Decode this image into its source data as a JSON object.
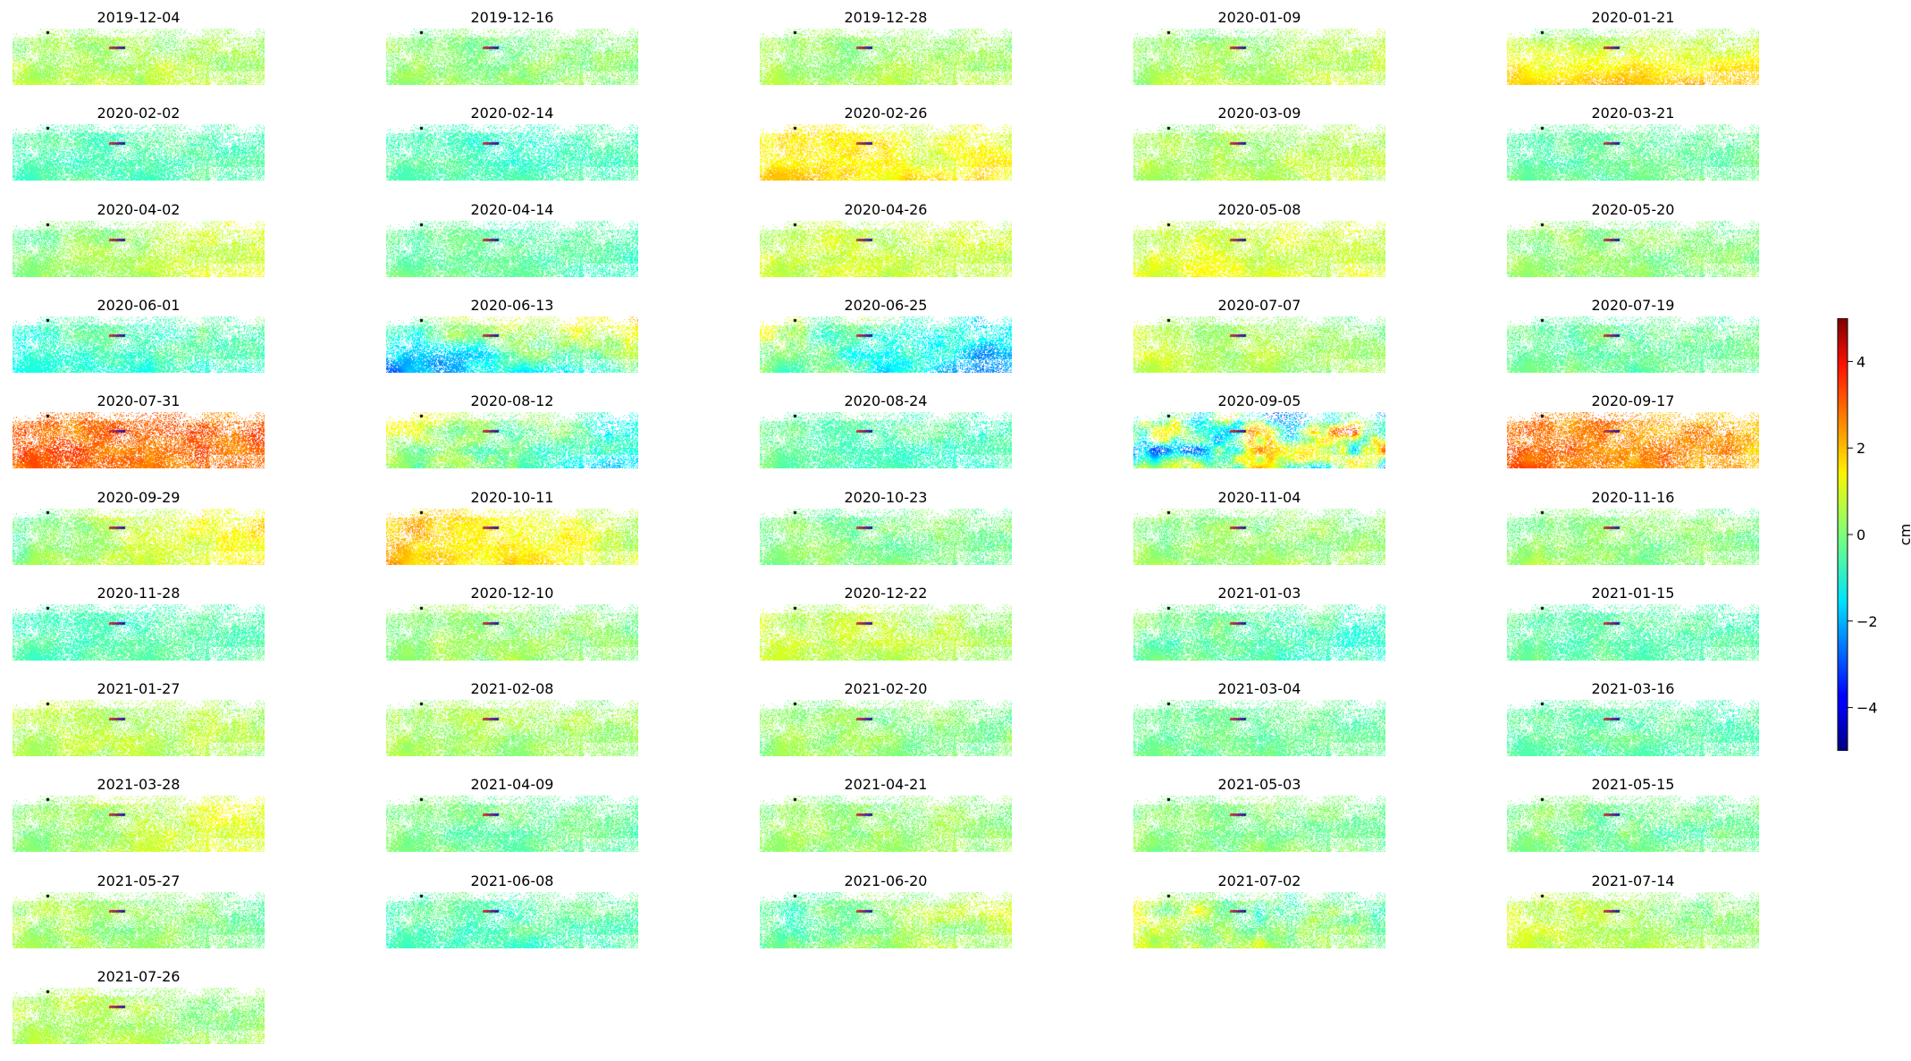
{
  "chart_data": {
    "type": "heatmap",
    "colormap": "jet",
    "layout": {
      "columns": 5,
      "panel_count": 51,
      "axes_visible": false
    },
    "panels": [
      {
        "date": "2019-12-04",
        "base": 0.4,
        "grad": 0.0,
        "vgrad": 0.4,
        "noise": 0.5
      },
      {
        "date": "2019-12-16",
        "base": 0.1,
        "grad": 0.0,
        "vgrad": 0.3,
        "noise": 0.5
      },
      {
        "date": "2019-12-28",
        "base": 0.3,
        "grad": 0.0,
        "vgrad": 0.2,
        "noise": 0.5
      },
      {
        "date": "2020-01-09",
        "base": 0.4,
        "grad": 0.5,
        "vgrad": 0.3,
        "noise": 0.5
      },
      {
        "date": "2020-01-21",
        "base": 1.0,
        "grad": 0.0,
        "vgrad": 1.6,
        "noise": 0.5
      },
      {
        "date": "2020-02-02",
        "base": -0.5,
        "grad": 0.0,
        "vgrad": 0.1,
        "noise": 0.4
      },
      {
        "date": "2020-02-14",
        "base": -0.6,
        "grad": 0.0,
        "vgrad": 0.2,
        "noise": 0.4
      },
      {
        "date": "2020-02-26",
        "base": 1.2,
        "grad": -0.3,
        "vgrad": 0.4,
        "noise": 0.6
      },
      {
        "date": "2020-03-09",
        "base": 0.4,
        "grad": 0.2,
        "vgrad": 0.2,
        "noise": 0.5
      },
      {
        "date": "2020-03-21",
        "base": -0.3,
        "grad": 0.0,
        "vgrad": 0.1,
        "noise": 0.4
      },
      {
        "date": "2020-04-02",
        "base": 0.5,
        "grad": 1.2,
        "vgrad": 0.1,
        "noise": 0.5
      },
      {
        "date": "2020-04-14",
        "base": -0.4,
        "grad": -0.5,
        "vgrad": 0.0,
        "noise": 0.4
      },
      {
        "date": "2020-04-26",
        "base": 0.7,
        "grad": 0.0,
        "vgrad": 0.3,
        "noise": 0.5
      },
      {
        "date": "2020-05-08",
        "base": 0.8,
        "grad": 0.0,
        "vgrad": 0.3,
        "noise": 0.5
      },
      {
        "date": "2020-05-20",
        "base": 0.1,
        "grad": -0.2,
        "vgrad": 0.1,
        "noise": 0.5
      },
      {
        "date": "2020-06-01",
        "base": -0.6,
        "grad": 0.5,
        "vgrad": -0.6,
        "noise": 0.6
      },
      {
        "date": "2020-06-13",
        "base": -0.3,
        "grad": 2.4,
        "vgrad": -2.2,
        "noise": 1.0
      },
      {
        "date": "2020-06-25",
        "base": -0.7,
        "grad": -2.4,
        "vgrad": -0.8,
        "noise": 1.0
      },
      {
        "date": "2020-07-07",
        "base": 0.4,
        "grad": -0.6,
        "vgrad": 0.2,
        "noise": 0.5
      },
      {
        "date": "2020-07-19",
        "base": -0.2,
        "grad": 0.0,
        "vgrad": 0.1,
        "noise": 0.5
      },
      {
        "date": "2020-07-31",
        "base": 2.7,
        "grad": 0.0,
        "vgrad": 0.2,
        "noise": 0.7
      },
      {
        "date": "2020-08-12",
        "base": -0.2,
        "grad": -2.0,
        "vgrad": -0.8,
        "noise": 1.0
      },
      {
        "date": "2020-08-24",
        "base": -0.4,
        "grad": -0.4,
        "vgrad": -0.1,
        "noise": 0.5
      },
      {
        "date": "2020-09-05",
        "base": 0.2,
        "grad": 0.0,
        "vgrad": 0.0,
        "noise": 3.6
      },
      {
        "date": "2020-09-17",
        "base": 2.3,
        "grad": -0.6,
        "vgrad": 0.3,
        "noise": 0.7
      },
      {
        "date": "2020-09-29",
        "base": 0.6,
        "grad": 1.6,
        "vgrad": 0.1,
        "noise": 0.6
      },
      {
        "date": "2020-10-11",
        "base": 1.3,
        "grad": -1.2,
        "vgrad": 0.2,
        "noise": 0.6
      },
      {
        "date": "2020-10-23",
        "base": 0.0,
        "grad": 0.0,
        "vgrad": 0.1,
        "noise": 0.5
      },
      {
        "date": "2020-11-04",
        "base": 0.2,
        "grad": 0.0,
        "vgrad": 0.1,
        "noise": 0.5
      },
      {
        "date": "2020-11-16",
        "base": 0.1,
        "grad": -0.3,
        "vgrad": 0.1,
        "noise": 0.5
      },
      {
        "date": "2020-11-28",
        "base": -0.5,
        "grad": 0.0,
        "vgrad": 0.1,
        "noise": 0.4
      },
      {
        "date": "2020-12-10",
        "base": 0.2,
        "grad": -0.2,
        "vgrad": 0.1,
        "noise": 0.5
      },
      {
        "date": "2020-12-22",
        "base": 0.5,
        "grad": -0.4,
        "vgrad": 0.1,
        "noise": 0.5
      },
      {
        "date": "2021-01-03",
        "base": -0.4,
        "grad": -0.8,
        "vgrad": -0.4,
        "noise": 0.6
      },
      {
        "date": "2021-01-15",
        "base": -0.4,
        "grad": -0.1,
        "vgrad": 0.0,
        "noise": 0.4
      },
      {
        "date": "2021-01-27",
        "base": 0.5,
        "grad": -0.3,
        "vgrad": 0.1,
        "noise": 0.5
      },
      {
        "date": "2021-02-08",
        "base": 0.3,
        "grad": -0.2,
        "vgrad": 0.1,
        "noise": 0.5
      },
      {
        "date": "2021-02-20",
        "base": 0.1,
        "grad": -0.3,
        "vgrad": 0.1,
        "noise": 0.5
      },
      {
        "date": "2021-03-04",
        "base": -0.3,
        "grad": -0.2,
        "vgrad": 0.0,
        "noise": 0.4
      },
      {
        "date": "2021-03-16",
        "base": -0.4,
        "grad": -0.1,
        "vgrad": 0.0,
        "noise": 0.4
      },
      {
        "date": "2021-03-28",
        "base": 0.6,
        "grad": 1.0,
        "vgrad": 0.1,
        "noise": 0.5
      },
      {
        "date": "2021-04-09",
        "base": -0.2,
        "grad": -0.3,
        "vgrad": -0.1,
        "noise": 0.4
      },
      {
        "date": "2021-04-21",
        "base": 0.2,
        "grad": 0.0,
        "vgrad": 0.1,
        "noise": 0.5
      },
      {
        "date": "2021-05-03",
        "base": 0.0,
        "grad": -0.2,
        "vgrad": 0.0,
        "noise": 0.5
      },
      {
        "date": "2021-05-15",
        "base": -0.1,
        "grad": -0.3,
        "vgrad": 0.0,
        "noise": 0.5
      },
      {
        "date": "2021-05-27",
        "base": 0.1,
        "grad": -0.6,
        "vgrad": 0.0,
        "noise": 0.5
      },
      {
        "date": "2021-06-08",
        "base": -0.5,
        "grad": 0.0,
        "vgrad": -0.2,
        "noise": 0.5
      },
      {
        "date": "2021-06-20",
        "base": 0.1,
        "grad": 1.2,
        "vgrad": 0.1,
        "noise": 0.6
      },
      {
        "date": "2021-07-02",
        "base": 0.2,
        "grad": -1.4,
        "vgrad": 0.5,
        "noise": 1.0
      },
      {
        "date": "2021-07-14",
        "base": 0.4,
        "grad": -0.6,
        "vgrad": 0.1,
        "noise": 0.5
      },
      {
        "date": "2021-07-26",
        "base": 0.4,
        "grad": -0.4,
        "vgrad": 0.1,
        "noise": 0.5
      }
    ],
    "colorbar": {
      "label": "cm",
      "vmin": -5,
      "vmax": 5,
      "ticks": [
        -4,
        -2,
        0,
        2,
        4
      ],
      "tick_labels": [
        "−4",
        "−2",
        "0",
        "2",
        "4"
      ]
    }
  }
}
